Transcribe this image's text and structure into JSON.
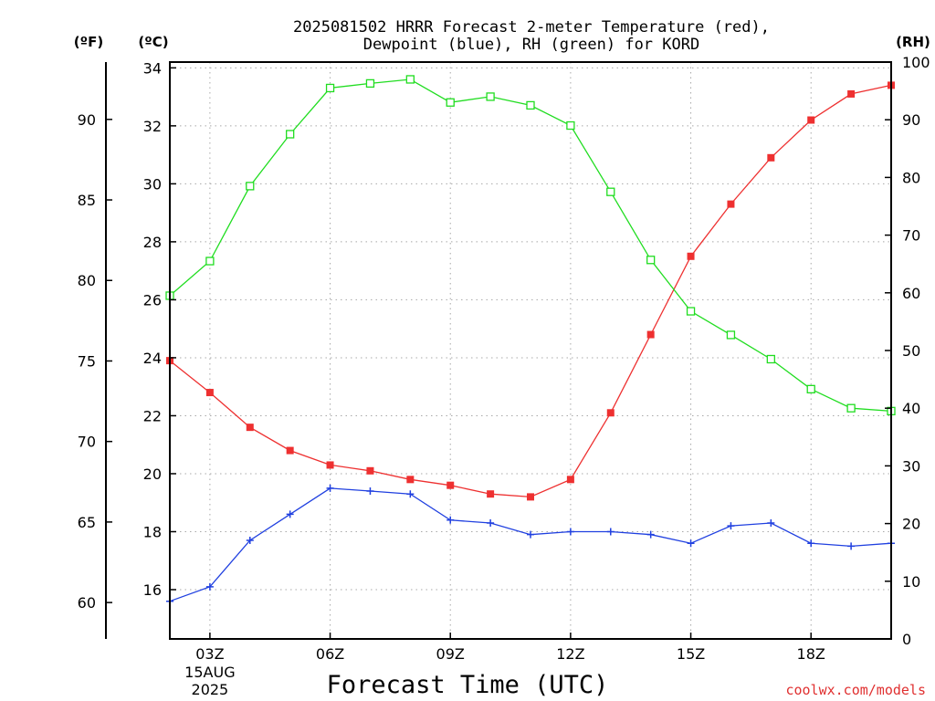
{
  "chart_data": {
    "type": "line",
    "title_lines": [
      "2025081502 HRRR Forecast 2-meter Temperature (red),",
      "Dewpoint (blue), RH (green) for KORD"
    ],
    "xlabel": "Forecast Time (UTC)",
    "credit": "coolwx.com/models",
    "units": {
      "left_f": "(ºF)",
      "left_c": "(ºC)",
      "right_rh": "(RH)"
    },
    "x": [
      2,
      3,
      4,
      5,
      6,
      7,
      8,
      9,
      10,
      11,
      12,
      13,
      14,
      15,
      16,
      17,
      18,
      19,
      20
    ],
    "xlim": [
      2,
      20
    ],
    "x_ticks": [
      {
        "x": 3,
        "label": "03Z",
        "sub": [
          "15AUG",
          "2025"
        ]
      },
      {
        "x": 6,
        "label": "06Z",
        "sub": []
      },
      {
        "x": 9,
        "label": "09Z",
        "sub": []
      },
      {
        "x": 12,
        "label": "12Z",
        "sub": []
      },
      {
        "x": 15,
        "label": "15Z",
        "sub": []
      },
      {
        "x": 18,
        "label": "18Z",
        "sub": []
      }
    ],
    "ylim_c": [
      14.3,
      34.2
    ],
    "yticks_c": [
      16,
      18,
      20,
      22,
      24,
      26,
      28,
      30,
      32,
      34
    ],
    "yticks_f": [
      60,
      65,
      70,
      75,
      80,
      85,
      90
    ],
    "ylim_rh": [
      0,
      100
    ],
    "yticks_rh": [
      0,
      10,
      20,
      30,
      40,
      50,
      60,
      70,
      80,
      90,
      100
    ],
    "grid": true,
    "series": [
      {
        "key": "temperature",
        "axis": "c",
        "color": "#ee3030",
        "marker": "filled-square",
        "values": [
          23.9,
          22.8,
          21.6,
          20.8,
          20.3,
          20.1,
          19.8,
          19.6,
          19.3,
          19.2,
          19.8,
          22.1,
          24.8,
          27.5,
          29.3,
          30.9,
          32.2,
          33.1,
          33.4
        ]
      },
      {
        "key": "dewpoint",
        "axis": "c",
        "color": "#2040e0",
        "marker": "plus",
        "values": [
          15.6,
          16.1,
          17.7,
          18.6,
          19.5,
          19.4,
          19.3,
          18.4,
          18.3,
          17.9,
          18.0,
          18.0,
          17.9,
          17.6,
          18.2,
          18.3,
          17.6,
          17.5,
          17.6
        ]
      },
      {
        "key": "rh",
        "axis": "rh",
        "color": "#20dd20",
        "marker": "open-square",
        "values": [
          59.5,
          65.5,
          78.5,
          87.5,
          95.5,
          96.3,
          97.0,
          93.0,
          94.0,
          92.5,
          89.0,
          77.5,
          65.7,
          56.8,
          52.7,
          48.5,
          43.3,
          40.0,
          39.5
        ]
      }
    ]
  }
}
